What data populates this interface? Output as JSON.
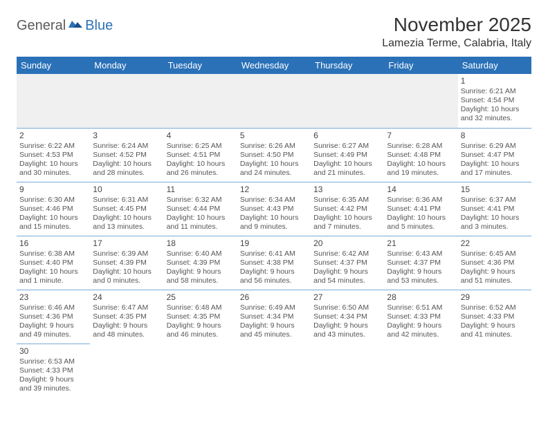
{
  "logo": {
    "general": "General",
    "blue": "Blue"
  },
  "title": "November 2025",
  "location": "Lamezia Terme, Calabria, Italy",
  "colors": {
    "header_bg": "#2a71b8",
    "header_text": "#ffffff",
    "border": "#7aa9d6",
    "blank_bg": "#f0f0f0",
    "text": "#444444"
  },
  "dow": [
    "Sunday",
    "Monday",
    "Tuesday",
    "Wednesday",
    "Thursday",
    "Friday",
    "Saturday"
  ],
  "weeks": [
    [
      null,
      null,
      null,
      null,
      null,
      null,
      {
        "d": "1",
        "sr": "6:21 AM",
        "ss": "4:54 PM",
        "dl": "10 hours and 32 minutes."
      }
    ],
    [
      {
        "d": "2",
        "sr": "6:22 AM",
        "ss": "4:53 PM",
        "dl": "10 hours and 30 minutes."
      },
      {
        "d": "3",
        "sr": "6:24 AM",
        "ss": "4:52 PM",
        "dl": "10 hours and 28 minutes."
      },
      {
        "d": "4",
        "sr": "6:25 AM",
        "ss": "4:51 PM",
        "dl": "10 hours and 26 minutes."
      },
      {
        "d": "5",
        "sr": "6:26 AM",
        "ss": "4:50 PM",
        "dl": "10 hours and 24 minutes."
      },
      {
        "d": "6",
        "sr": "6:27 AM",
        "ss": "4:49 PM",
        "dl": "10 hours and 21 minutes."
      },
      {
        "d": "7",
        "sr": "6:28 AM",
        "ss": "4:48 PM",
        "dl": "10 hours and 19 minutes."
      },
      {
        "d": "8",
        "sr": "6:29 AM",
        "ss": "4:47 PM",
        "dl": "10 hours and 17 minutes."
      }
    ],
    [
      {
        "d": "9",
        "sr": "6:30 AM",
        "ss": "4:46 PM",
        "dl": "10 hours and 15 minutes."
      },
      {
        "d": "10",
        "sr": "6:31 AM",
        "ss": "4:45 PM",
        "dl": "10 hours and 13 minutes."
      },
      {
        "d": "11",
        "sr": "6:32 AM",
        "ss": "4:44 PM",
        "dl": "10 hours and 11 minutes."
      },
      {
        "d": "12",
        "sr": "6:34 AM",
        "ss": "4:43 PM",
        "dl": "10 hours and 9 minutes."
      },
      {
        "d": "13",
        "sr": "6:35 AM",
        "ss": "4:42 PM",
        "dl": "10 hours and 7 minutes."
      },
      {
        "d": "14",
        "sr": "6:36 AM",
        "ss": "4:41 PM",
        "dl": "10 hours and 5 minutes."
      },
      {
        "d": "15",
        "sr": "6:37 AM",
        "ss": "4:41 PM",
        "dl": "10 hours and 3 minutes."
      }
    ],
    [
      {
        "d": "16",
        "sr": "6:38 AM",
        "ss": "4:40 PM",
        "dl": "10 hours and 1 minute."
      },
      {
        "d": "17",
        "sr": "6:39 AM",
        "ss": "4:39 PM",
        "dl": "10 hours and 0 minutes."
      },
      {
        "d": "18",
        "sr": "6:40 AM",
        "ss": "4:39 PM",
        "dl": "9 hours and 58 minutes."
      },
      {
        "d": "19",
        "sr": "6:41 AM",
        "ss": "4:38 PM",
        "dl": "9 hours and 56 minutes."
      },
      {
        "d": "20",
        "sr": "6:42 AM",
        "ss": "4:37 PM",
        "dl": "9 hours and 54 minutes."
      },
      {
        "d": "21",
        "sr": "6:43 AM",
        "ss": "4:37 PM",
        "dl": "9 hours and 53 minutes."
      },
      {
        "d": "22",
        "sr": "6:45 AM",
        "ss": "4:36 PM",
        "dl": "9 hours and 51 minutes."
      }
    ],
    [
      {
        "d": "23",
        "sr": "6:46 AM",
        "ss": "4:36 PM",
        "dl": "9 hours and 49 minutes."
      },
      {
        "d": "24",
        "sr": "6:47 AM",
        "ss": "4:35 PM",
        "dl": "9 hours and 48 minutes."
      },
      {
        "d": "25",
        "sr": "6:48 AM",
        "ss": "4:35 PM",
        "dl": "9 hours and 46 minutes."
      },
      {
        "d": "26",
        "sr": "6:49 AM",
        "ss": "4:34 PM",
        "dl": "9 hours and 45 minutes."
      },
      {
        "d": "27",
        "sr": "6:50 AM",
        "ss": "4:34 PM",
        "dl": "9 hours and 43 minutes."
      },
      {
        "d": "28",
        "sr": "6:51 AM",
        "ss": "4:33 PM",
        "dl": "9 hours and 42 minutes."
      },
      {
        "d": "29",
        "sr": "6:52 AM",
        "ss": "4:33 PM",
        "dl": "9 hours and 41 minutes."
      }
    ],
    [
      {
        "d": "30",
        "sr": "6:53 AM",
        "ss": "4:33 PM",
        "dl": "9 hours and 39 minutes."
      },
      null,
      null,
      null,
      null,
      null,
      null
    ]
  ],
  "labels": {
    "sunrise": "Sunrise: ",
    "sunset": "Sunset: ",
    "daylight": "Daylight: "
  }
}
